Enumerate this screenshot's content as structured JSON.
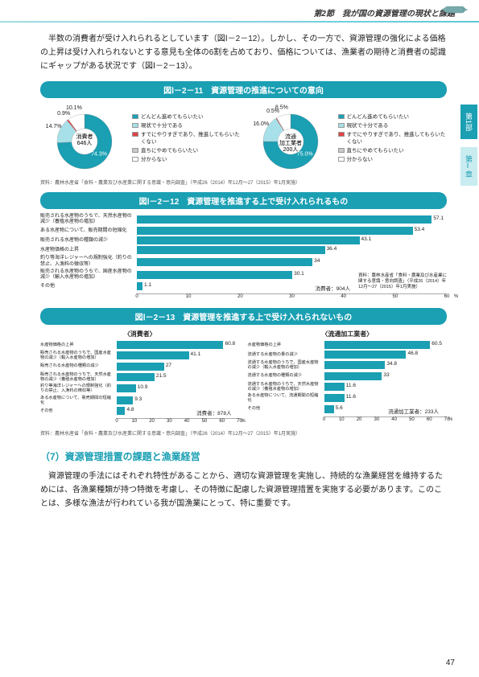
{
  "header": {
    "section": "第2節　我が国の資源管理の現状と課題"
  },
  "intro": "半数の消費者が受け入れられるとしています（図Ⅰ－2－12）。しかし、その一方で、資源管理の強化による価格の上昇は受け入れられないとする意見も全体の6割を占めており、価格については、漁業者の期待と消費者の認識にギャップがある状況です（図Ⅰ－2－13）。",
  "fig11": {
    "title": "図Ⅰ－2－11　資源管理の推進についての意向",
    "legend": [
      "どんどん進めてもらいたい",
      "現状で十分である",
      "すでにやりすぎであり、推進してもらいたくない",
      "直ちにやめてもらいたい",
      "分からない"
    ],
    "colors": {
      "main": "#1a9fb3",
      "light": "#a7e0e8",
      "red": "#d44",
      "gray": "#c9c9c9",
      "white": "#ffffff"
    },
    "left": {
      "center1": "消費者",
      "center2": "646人",
      "slices": [
        74.3,
        14.7,
        0.9,
        0,
        10.1
      ],
      "labels": [
        "74.3%",
        "14.7%",
        "0.9%",
        "",
        "10.1%"
      ]
    },
    "right": {
      "center1": "流通",
      "center2": "加工業者",
      "center3": "200人",
      "slices": [
        75.0,
        16.0,
        0.5,
        0,
        8.5
      ],
      "labels": [
        "75.0%",
        "16.0%",
        "0.5%",
        "",
        "8.5%"
      ]
    },
    "source": "資料：農林水産省「食料・農業及び水産業に関する意識・意向調査」（平成26（2014）年12月～27（2015）年1月実施）"
  },
  "fig12": {
    "title": "図Ⅰ－2－12　資源管理を推進する上で受け入れられるもの",
    "bars": [
      {
        "label": "販売される水産物のうちで、天然水産物の減少（養殖水産物の増加）",
        "val": 57.1
      },
      {
        "label": "ある水産物について、販売期間の短縮化",
        "val": 53.4
      },
      {
        "label": "販売される水産物の種類の減少",
        "val": 43.1
      },
      {
        "label": "水産物価格の上昇",
        "val": 36.4
      },
      {
        "label": "釣り等海洋レジャーへの規制強化（釣りの禁止、入漁料の徴収等）",
        "val": 34.0
      },
      {
        "label": "販売される水産物のうちで、国産水産物の減少（輸入水産物の増加）",
        "val": 30.1
      },
      {
        "label": "その他",
        "val": 1.1
      }
    ],
    "n": "消費者：904人",
    "xmax": 60,
    "note": "資料：農林水産省「食料・農業及び水産業に関する意識・意向調査」（平成26（2014）年12月～27（2015）年1月実施）"
  },
  "fig13": {
    "title": "図Ⅰ－2－13　資源管理を推進する上で受け入れられないもの",
    "left": {
      "title": "〈消費者〉",
      "bars": [
        {
          "label": "水産物価格の上昇",
          "val": 60.8
        },
        {
          "label": "販売される水産物のうちで、国産水産物の減少（輸入水産物の増加）",
          "val": 41.1
        },
        {
          "label": "販売される水産物の種類の減少",
          "val": 27.0
        },
        {
          "label": "販売される水産物のうちで、天然水産物の減少（養殖水産物の増加）",
          "val": 21.5
        },
        {
          "label": "釣り等海洋レジャーへの規制強化（釣りの禁止、入漁料の徴収等）",
          "val": 10.9
        },
        {
          "label": "ある水産物について、販売期間の短縮化",
          "val": 9.3
        },
        {
          "label": "その他",
          "val": 4.8
        }
      ],
      "n": "消費者：878人"
    },
    "right": {
      "title": "〈流通加工業者〉",
      "bars": [
        {
          "label": "水産物価格の上昇",
          "val": 60.5
        },
        {
          "label": "流通する水産物の量の減少",
          "val": 46.8
        },
        {
          "label": "流通する水産物のうちで、国産水産物の減少（輸入水産物の増加）",
          "val": 34.8
        },
        {
          "label": "流通する水産物の種類の減少",
          "val": 33.0
        },
        {
          "label": "流通する水産物のうちで、天然水産物の減少（養殖水産物の増加）",
          "val": 11.6
        },
        {
          "label": "ある水産物について、流通期間の短縮化",
          "val": 11.6
        },
        {
          "label": "その他",
          "val": 5.6
        }
      ],
      "n": "流通加工業者：233人"
    },
    "xmax": 70,
    "source": "資料：農林水産省「食料・農業及び水産業に関する意識・意向調査」（平成26（2014）年12月～27（2015）年1月実施）"
  },
  "section7": {
    "title": "（7）資源管理措置の課題と漁業経営",
    "para": "資源管理の手法にはそれぞれ特性があることから、適切な資源管理を実施し、持続的な漁業経営を維持するためには、各漁業種類が持つ特徴を考慮し、その特徴に配慮した資源管理措置を実施する必要があります。このことは、多様な漁法が行われている我が国漁業にとって、特に重要です。"
  },
  "sidebar": {
    "tab1a": "第",
    "tab1b": "1",
    "tab1c": "部",
    "tab2": "第Ⅰ章"
  },
  "pageNum": "47"
}
